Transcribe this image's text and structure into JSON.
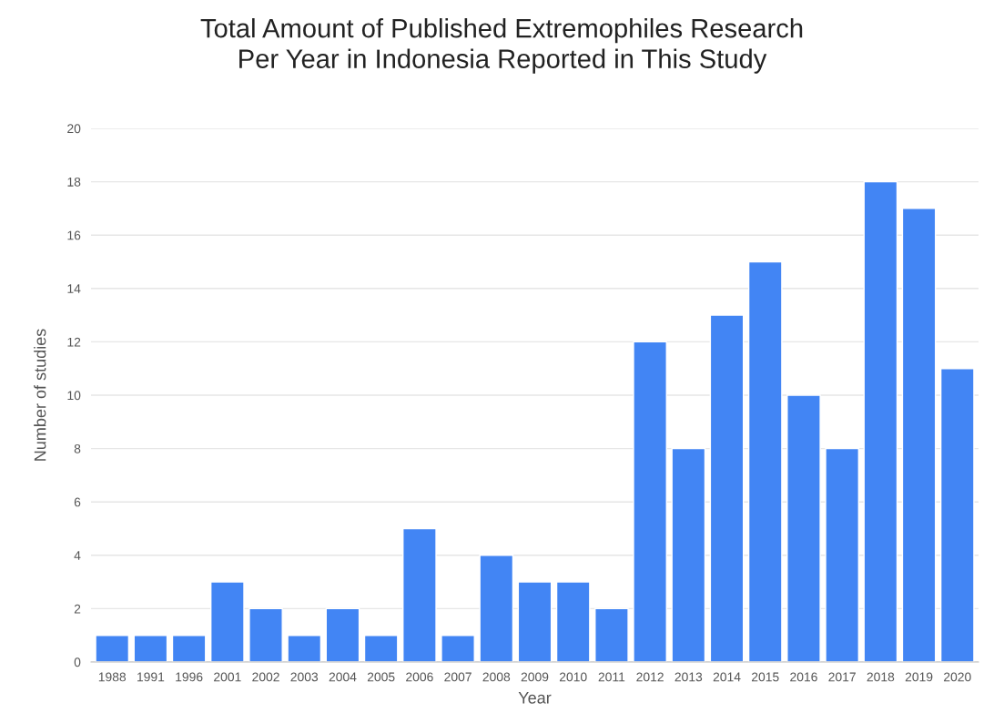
{
  "chart_data": {
    "type": "bar",
    "title": "Total Amount of Published Extremophiles Research\nPer Year in Indonesia Reported in This Study",
    "xlabel": "Year",
    "ylabel": "Number of studies",
    "categories": [
      "1988",
      "1991",
      "1996",
      "2001",
      "2002",
      "2003",
      "2004",
      "2005",
      "2006",
      "2007",
      "2008",
      "2009",
      "2010",
      "2011",
      "2012",
      "2013",
      "2014",
      "2015",
      "2016",
      "2017",
      "2018",
      "2019",
      "2020"
    ],
    "values": [
      1,
      1,
      1,
      3,
      2,
      1,
      2,
      1,
      5,
      1,
      4,
      3,
      3,
      2,
      12,
      8,
      13,
      15,
      10,
      8,
      18,
      17,
      11
    ],
    "color": "#4285f4",
    "ylim": [
      0,
      20
    ],
    "yticks": [
      0,
      2,
      4,
      6,
      8,
      10,
      12,
      14,
      16,
      18,
      20
    ],
    "grid": "y"
  }
}
